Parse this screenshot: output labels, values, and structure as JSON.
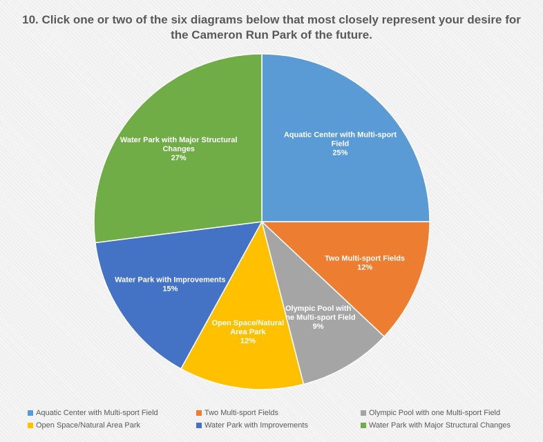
{
  "title_line1": "10. Click one or two of the six diagrams below that most closely represent your desire for",
  "title_line2": "the Cameron Run Park of the future.",
  "chart_data": {
    "type": "pie",
    "title": "10. Click one or two of the six diagrams below that most closely represent your desire for the Cameron Run Park of the future.",
    "legend_position": "bottom",
    "slices": [
      {
        "label": "Aquatic Center with Multi-sport Field",
        "value": 25,
        "percent_label": "25%",
        "color": "#5b9bd5",
        "label_lines": [
          "Aquatic Center with Multi-sport",
          "Field",
          "25%"
        ]
      },
      {
        "label": "Two Multi-sport Fields",
        "value": 12,
        "percent_label": "12%",
        "color": "#ed7d31",
        "label_lines": [
          "Two Multi-sport Fields",
          "12%"
        ]
      },
      {
        "label": "Olympic Pool with one Multi-sport Field",
        "value": 9,
        "percent_label": "9%",
        "color": "#a5a5a5",
        "label_lines": [
          "Olympic Pool with",
          "one Multi-sport Field",
          "9%"
        ]
      },
      {
        "label": "Open Space/Natural Area Park",
        "value": 12,
        "percent_label": "12%",
        "color": "#ffc000",
        "label_lines": [
          "Open Space/Natural",
          "Area Park",
          "12%"
        ]
      },
      {
        "label": "Water Park with Improvements",
        "value": 15,
        "percent_label": "15%",
        "color": "#4472c4",
        "label_lines": [
          "Water Park with Improvements",
          "15%"
        ]
      },
      {
        "label": "Water Park with Major Structural Changes",
        "value": 27,
        "percent_label": "27%",
        "color": "#70ad47",
        "label_lines": [
          "Water Park with Major Structural",
          "Changes",
          "27%"
        ]
      }
    ]
  }
}
